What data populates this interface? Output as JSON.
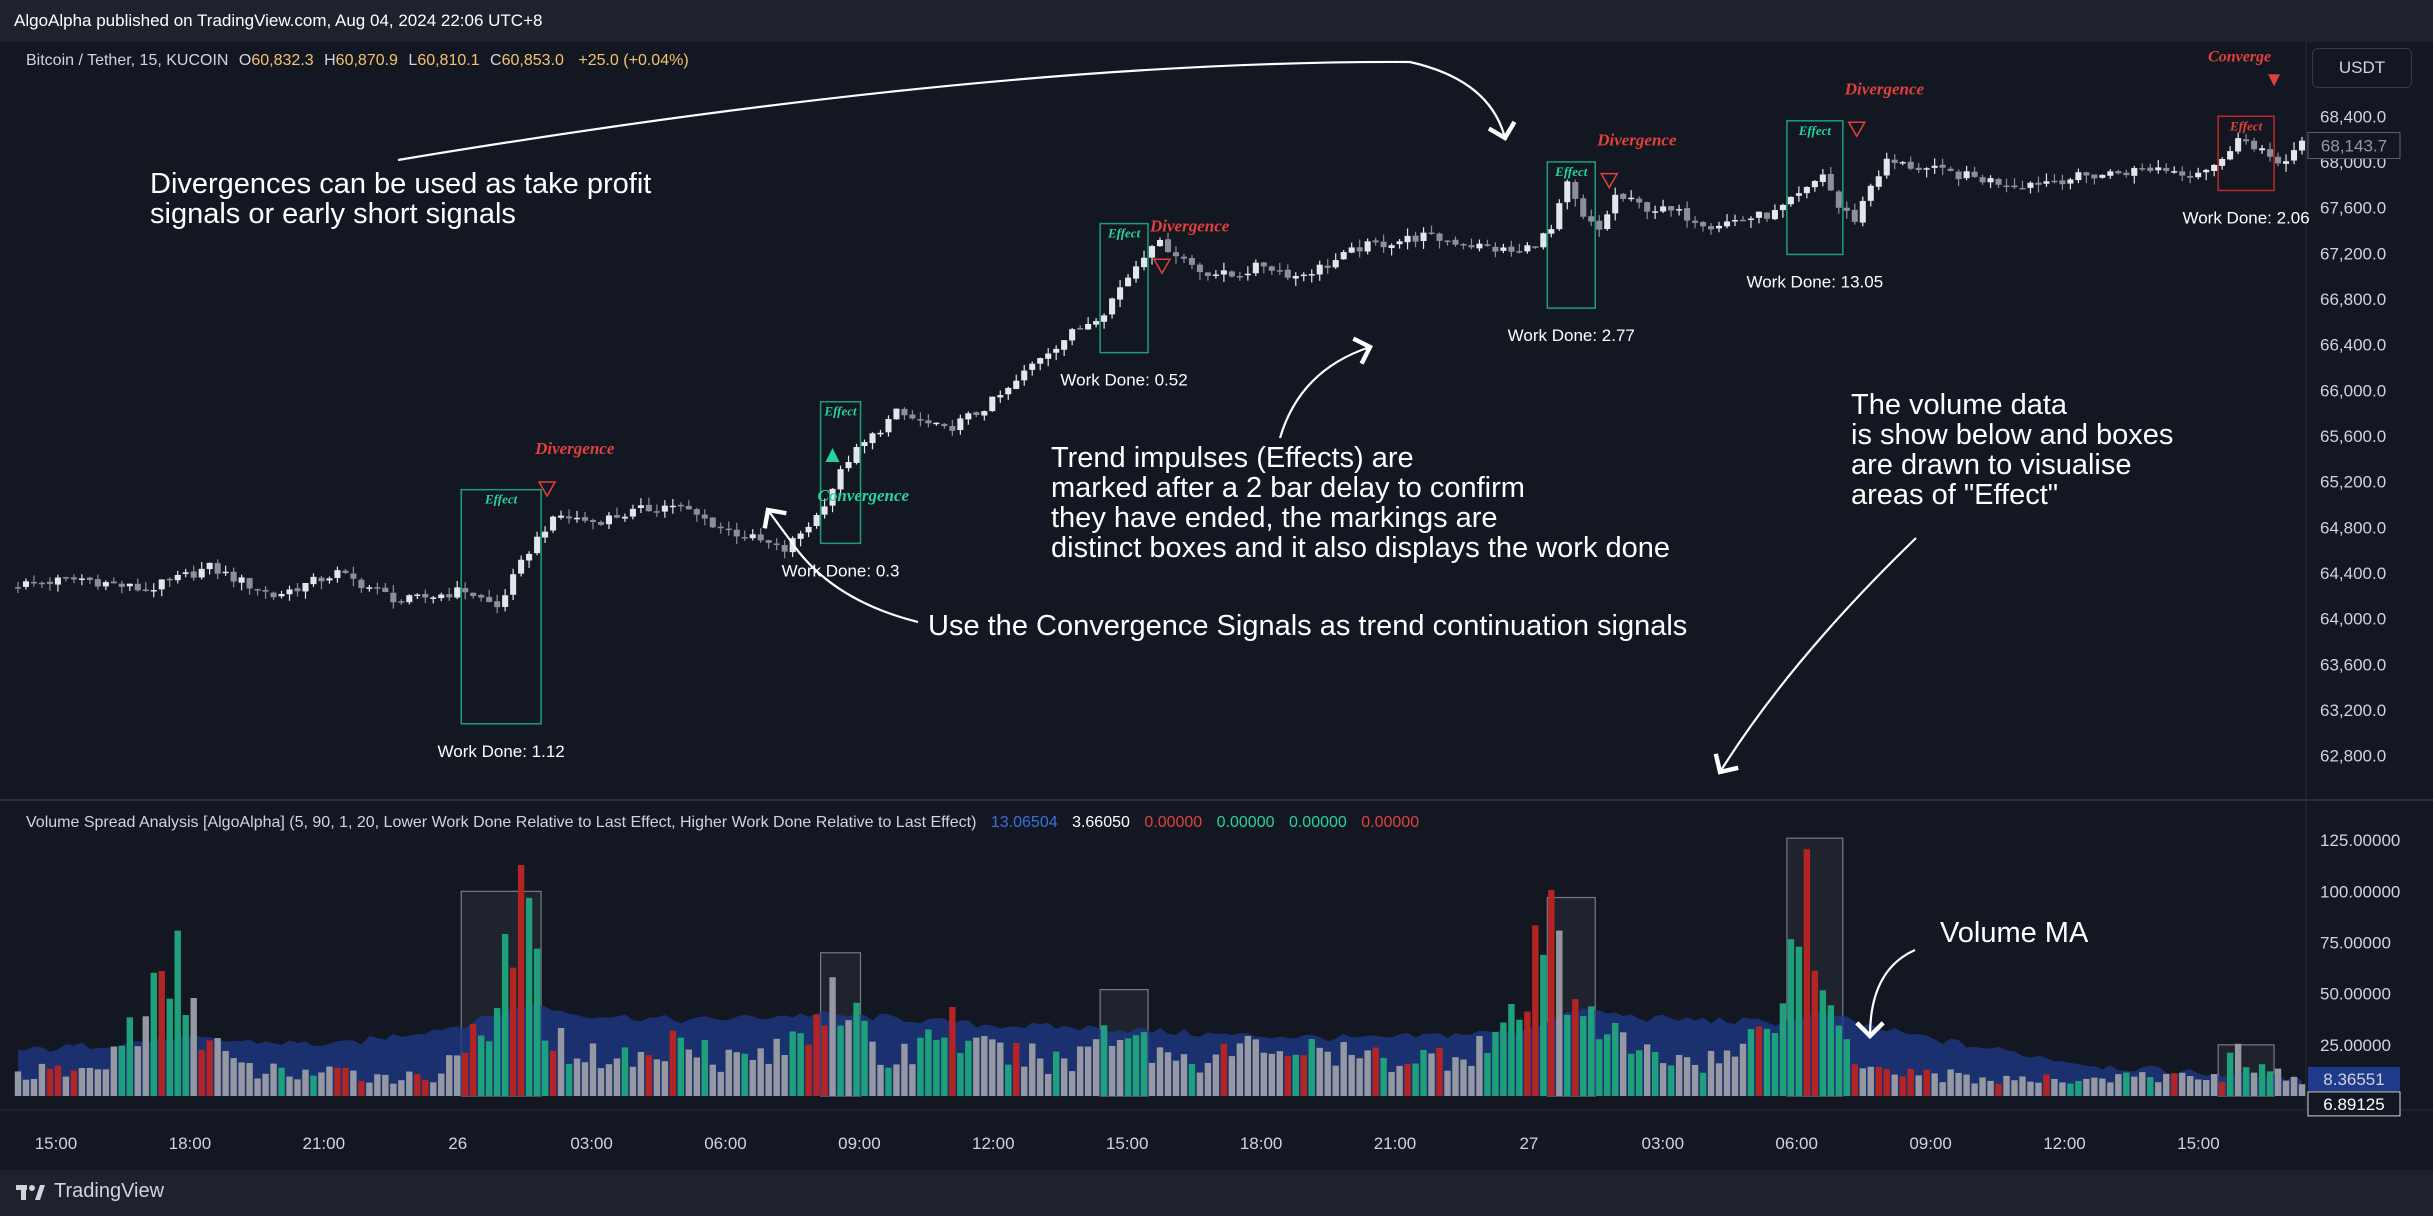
{
  "header": {
    "published": "AlgoAlpha published on TradingView.com, Aug 04, 2024 22:06 UTC+8"
  },
  "main_legend": {
    "symbol": "Bitcoin / Tether, 15, KUCOIN",
    "o_label": "O",
    "o": "60,832.3",
    "h_label": "H",
    "h": "60,870.9",
    "l_label": "L",
    "l": "60,810.1",
    "c_label": "C",
    "c": "60,853.0",
    "change": "+25.0 (+0.04%)"
  },
  "currency_button": "USDT",
  "indicator_legend": {
    "name": "Volume Spread Analysis [AlgoAlpha] (5, 90, 1, 20, Lower Work Done Relative to Last Effect, Higher Work Done Relative to Last Effect)",
    "v1": "13.06504",
    "v2": "3.66050",
    "v3": "0.00000",
    "v4": "0.00000",
    "v5": "0.00000",
    "v6": "0.00000"
  },
  "annotations": {
    "divergence_note": "Divergences can be used as take profit\nsignals or early short signals",
    "convergence_note": "Use the Convergence Signals as trend continuation signals",
    "impulse_note": "Trend impulses (Effects) are\nmarked after a 2 bar delay to confirm\nthey have ended, the markings are\ndistinct boxes and it also displays the work done",
    "volume_note": "The volume data\nis show below and boxes\nare drawn to visualise\nareas of \"Effect\"",
    "volume_ma_note": "Volume MA"
  },
  "footer": {
    "brand": "TradingView"
  },
  "chart_data": [
    {
      "type": "candlestick",
      "title": "Bitcoin / Tether, 15, KUCOIN",
      "ylim": [
        62500,
        68700
      ],
      "y_ticks": [
        62800,
        63200,
        63600,
        64000,
        64400,
        64800,
        65200,
        65600,
        66000,
        66400,
        66800,
        67200,
        67600,
        68000,
        68400
      ],
      "y_tick_labels": [
        "62,800.0",
        "63,200.0",
        "63,600.0",
        "64,000.0",
        "64,400.0",
        "64,800.0",
        "65,200.0",
        "65,600.0",
        "66,000.0",
        "66,400.0",
        "66,800.0",
        "67,200.0",
        "67,600.0",
        "68,000.0",
        "68,400.0"
      ],
      "x_labels": [
        "15:00",
        "18:00",
        "21:00",
        "26",
        "03:00",
        "06:00",
        "09:00",
        "12:00",
        "15:00",
        "18:00",
        "21:00",
        "27",
        "03:00",
        "06:00",
        "09:00",
        "12:00",
        "15:00"
      ],
      "last_price_label": "68,143.7",
      "last_price": 68143.7,
      "close_path": [
        [
          0,
          64300
        ],
        [
          8,
          64350
        ],
        [
          16,
          64250
        ],
        [
          24,
          64450
        ],
        [
          32,
          64200
        ],
        [
          40,
          64400
        ],
        [
          48,
          64150
        ],
        [
          56,
          64250
        ],
        [
          60,
          64100
        ],
        [
          64,
          64600
        ],
        [
          66,
          64800
        ],
        [
          68,
          64900
        ],
        [
          72,
          64850
        ],
        [
          78,
          64950
        ],
        [
          82,
          65000
        ],
        [
          88,
          64800
        ],
        [
          96,
          64600
        ],
        [
          100,
          64900
        ],
        [
          104,
          65400
        ],
        [
          107,
          65600
        ],
        [
          110,
          65800
        ],
        [
          112,
          65750
        ],
        [
          116,
          65650
        ],
        [
          120,
          65800
        ],
        [
          124,
          66000
        ],
        [
          128,
          66300
        ],
        [
          132,
          66500
        ],
        [
          136,
          66700
        ],
        [
          138,
          66900
        ],
        [
          140,
          67100
        ],
        [
          142,
          67300
        ],
        [
          144,
          67250
        ],
        [
          148,
          67050
        ],
        [
          152,
          67000
        ],
        [
          156,
          67100
        ],
        [
          160,
          67000
        ],
        [
          164,
          67100
        ],
        [
          168,
          67250
        ],
        [
          172,
          67300
        ],
        [
          176,
          67350
        ],
        [
          180,
          67300
        ],
        [
          184,
          67250
        ],
        [
          188,
          67200
        ],
        [
          192,
          67400
        ],
        [
          194,
          67800
        ],
        [
          196,
          67500
        ],
        [
          198,
          67400
        ],
        [
          200,
          67700
        ],
        [
          204,
          67600
        ],
        [
          208,
          67550
        ],
        [
          212,
          67450
        ],
        [
          216,
          67500
        ],
        [
          220,
          67550
        ],
        [
          224,
          67750
        ],
        [
          226,
          67900
        ],
        [
          228,
          67600
        ],
        [
          230,
          67500
        ],
        [
          232,
          67800
        ],
        [
          234,
          68000
        ],
        [
          238,
          67950
        ],
        [
          242,
          67900
        ],
        [
          246,
          67850
        ],
        [
          250,
          67800
        ],
        [
          256,
          67850
        ],
        [
          262,
          67900
        ],
        [
          268,
          67950
        ],
        [
          272,
          67900
        ],
        [
          276,
          68000
        ],
        [
          278,
          68250
        ],
        [
          280,
          68100
        ],
        [
          284,
          68000
        ],
        [
          286,
          68150
        ]
      ],
      "effect_boxes": [
        {
          "label": "Effect",
          "start": 56,
          "end": 65,
          "top": 65130,
          "bottom": 63080,
          "work_done": "Work Done: 1.12"
        },
        {
          "label": "Effect",
          "start": 101,
          "end": 105,
          "top": 65900,
          "bottom": 64660,
          "work_done": "Work Done: 0.3"
        },
        {
          "label": "Effect",
          "start": 136,
          "end": 141,
          "top": 67460,
          "bottom": 66330,
          "work_done": "Work Done: 0.52"
        },
        {
          "label": "Effect",
          "start": 192,
          "end": 197,
          "top": 68000,
          "bottom": 66720,
          "work_done": "Work Done: 2.77"
        },
        {
          "label": "Effect",
          "start": 222,
          "end": 228,
          "top": 68360,
          "bottom": 67190,
          "work_done": "Work Done: 13.05"
        },
        {
          "label": "Effect",
          "start": 276,
          "end": 282,
          "top": 68400,
          "bottom": 67750,
          "work_done": "Work Done: 2.06"
        }
      ],
      "signals": [
        {
          "label": "Divergence",
          "type": "divergence",
          "x": 66,
          "price": 65250
        },
        {
          "label": "Convergence",
          "type": "convergence",
          "x": 107,
          "price": 65250
        },
        {
          "label": "Divergence",
          "type": "divergence",
          "x": 143,
          "price": 67200
        },
        {
          "label": "Divergence",
          "type": "divergence",
          "x": 199,
          "price": 67950
        },
        {
          "label": "Divergence",
          "type": "divergence",
          "x": 230,
          "price": 68400
        },
        {
          "label": "Converge",
          "type": "converge-down",
          "x": 283,
          "price": 68400
        }
      ]
    },
    {
      "type": "bar",
      "title": "Volume Spread Analysis [AlgoAlpha]",
      "ylim": [
        0,
        130
      ],
      "y_ticks": [
        25,
        50,
        75,
        100,
        125
      ],
      "y_tick_labels": [
        "25.00000",
        "50.00000",
        "75.00000",
        "100.00000",
        "125.00000"
      ],
      "ma_label": "8.36551",
      "last_label": "6.89125",
      "volume_path": [
        [
          0,
          12
        ],
        [
          10,
          14
        ],
        [
          16,
          45
        ],
        [
          20,
          68
        ],
        [
          24,
          30
        ],
        [
          28,
          14
        ],
        [
          40,
          12
        ],
        [
          52,
          10
        ],
        [
          56,
          33
        ],
        [
          58,
          24
        ],
        [
          60,
          45
        ],
        [
          62,
          100
        ],
        [
          64,
          85
        ],
        [
          66,
          45
        ],
        [
          68,
          28
        ],
        [
          72,
          22
        ],
        [
          80,
          20
        ],
        [
          84,
          38
        ],
        [
          88,
          20
        ],
        [
          96,
          24
        ],
        [
          100,
          46
        ],
        [
          102,
          66
        ],
        [
          104,
          48
        ],
        [
          106,
          30
        ],
        [
          108,
          18
        ],
        [
          112,
          24
        ],
        [
          116,
          42
        ],
        [
          120,
          25
        ],
        [
          128,
          20
        ],
        [
          132,
          18
        ],
        [
          136,
          38
        ],
        [
          140,
          35
        ],
        [
          142,
          25
        ],
        [
          148,
          20
        ],
        [
          156,
          28
        ],
        [
          164,
          22
        ],
        [
          172,
          20
        ],
        [
          180,
          22
        ],
        [
          184,
          30
        ],
        [
          188,
          40
        ],
        [
          192,
          96
        ],
        [
          194,
          50
        ],
        [
          196,
          62
        ],
        [
          198,
          42
        ],
        [
          200,
          30
        ],
        [
          204,
          22
        ],
        [
          212,
          20
        ],
        [
          216,
          24
        ],
        [
          222,
          70
        ],
        [
          224,
          125
        ],
        [
          226,
          50
        ],
        [
          228,
          40
        ],
        [
          230,
          22
        ],
        [
          236,
          14
        ],
        [
          244,
          10
        ],
        [
          252,
          8
        ],
        [
          260,
          10
        ],
        [
          270,
          10
        ],
        [
          276,
          12
        ],
        [
          278,
          25
        ],
        [
          280,
          18
        ],
        [
          284,
          10
        ],
        [
          286,
          7
        ]
      ],
      "ma_path": [
        [
          0,
          22
        ],
        [
          20,
          28
        ],
        [
          40,
          25
        ],
        [
          56,
          35
        ],
        [
          64,
          45
        ],
        [
          70,
          40
        ],
        [
          84,
          37
        ],
        [
          100,
          40
        ],
        [
          110,
          38
        ],
        [
          120,
          35
        ],
        [
          136,
          33
        ],
        [
          150,
          30
        ],
        [
          170,
          28
        ],
        [
          188,
          32
        ],
        [
          196,
          42
        ],
        [
          204,
          38
        ],
        [
          220,
          36
        ],
        [
          226,
          40
        ],
        [
          234,
          32
        ],
        [
          244,
          25
        ],
        [
          260,
          15
        ],
        [
          270,
          12
        ],
        [
          286,
          8.4
        ]
      ],
      "effect_boxes": [
        {
          "start": 56,
          "end": 65,
          "top": 100
        },
        {
          "start": 101,
          "end": 105,
          "top": 70
        },
        {
          "start": 136,
          "end": 141,
          "top": 52
        },
        {
          "start": 192,
          "end": 197,
          "top": 97
        },
        {
          "start": 222,
          "end": 228,
          "top": 126
        },
        {
          "start": 276,
          "end": 282,
          "top": 25
        }
      ]
    }
  ]
}
